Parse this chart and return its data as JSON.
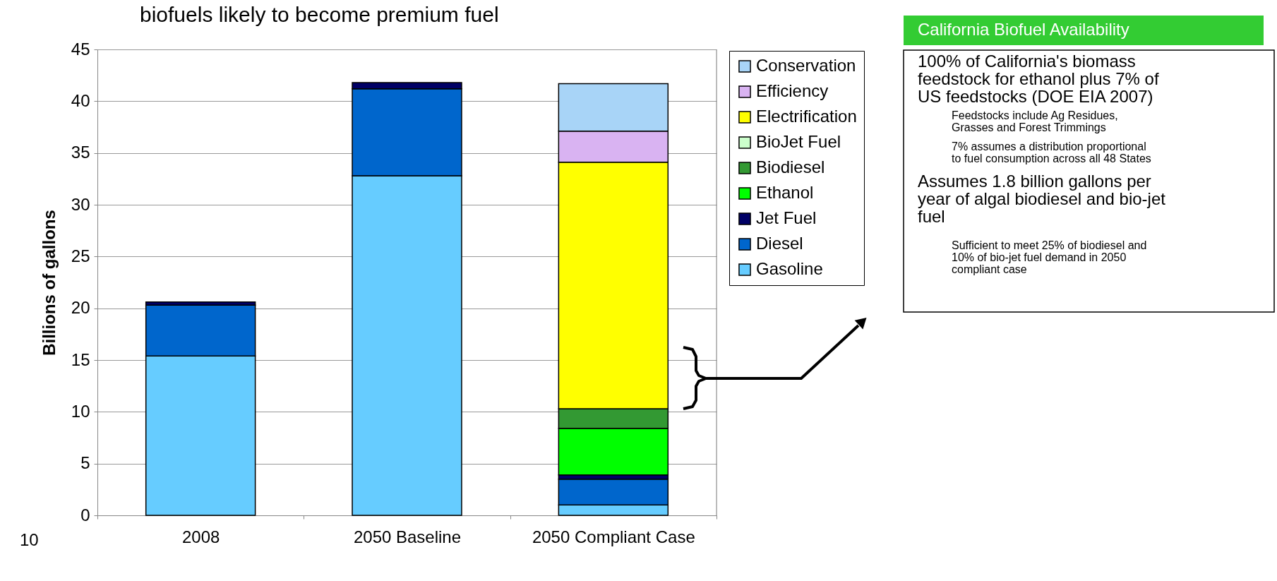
{
  "chart_data": {
    "type": "bar",
    "title": "biofuels likely to become premium fuel",
    "ylabel": "Billions of gallons",
    "categories": [
      "2008",
      "2050 Baseline",
      "2050 Compliant Case"
    ],
    "stacked": true,
    "series": [
      {
        "name": "Gasoline",
        "color": "#66ccff",
        "values": [
          15.4,
          32.8,
          1.0
        ]
      },
      {
        "name": "Diesel",
        "color": "#0066cc",
        "values": [
          4.9,
          8.4,
          2.5
        ]
      },
      {
        "name": "Jet Fuel",
        "color": "#000066",
        "values": [
          0.3,
          0.6,
          0.4
        ]
      },
      {
        "name": "Ethanol",
        "color": "#00ff00",
        "values": [
          null,
          null,
          4.5
        ]
      },
      {
        "name": "Biodiesel",
        "color": "#339933",
        "values": [
          null,
          null,
          1.9
        ]
      },
      {
        "name": "BioJet Fuel",
        "color": "#ccffcc",
        "values": [
          null,
          null,
          null
        ]
      },
      {
        "name": "Electrification",
        "color": "#ffff00",
        "values": [
          null,
          null,
          23.8
        ]
      },
      {
        "name": "Efficiency",
        "color": "#d9b3f2",
        "values": [
          null,
          null,
          3.0
        ]
      },
      {
        "name": "Conservation",
        "color": "#a8d4f7",
        "values": [
          null,
          null,
          4.6
        ]
      }
    ],
    "ylim": [
      0,
      45
    ],
    "yticks": [
      0,
      5,
      10,
      15,
      20,
      25,
      30,
      35,
      40,
      45
    ],
    "grid": "y",
    "legend": "right",
    "annotations": [
      "California Biofuel Availability",
      "100% of California's biomass\nfeedstock for ethanol plus 7% of\nUS feedstocks (DOE EIA 2007)",
      "Feedstocks include Ag Residues,\nGrasses and Forest Trimmings",
      "7% assumes a distribution proportional\nto fuel consumption across all 48 States",
      "Assumes 1.8 billion gallons per\nyear of algal biodiesel and bio-jet\nfuel",
      "Sufficient to meet 25% of biodiesel and\n10% of bio-jet fuel demand in 2050\ncompliant case",
      "10"
    ]
  }
}
